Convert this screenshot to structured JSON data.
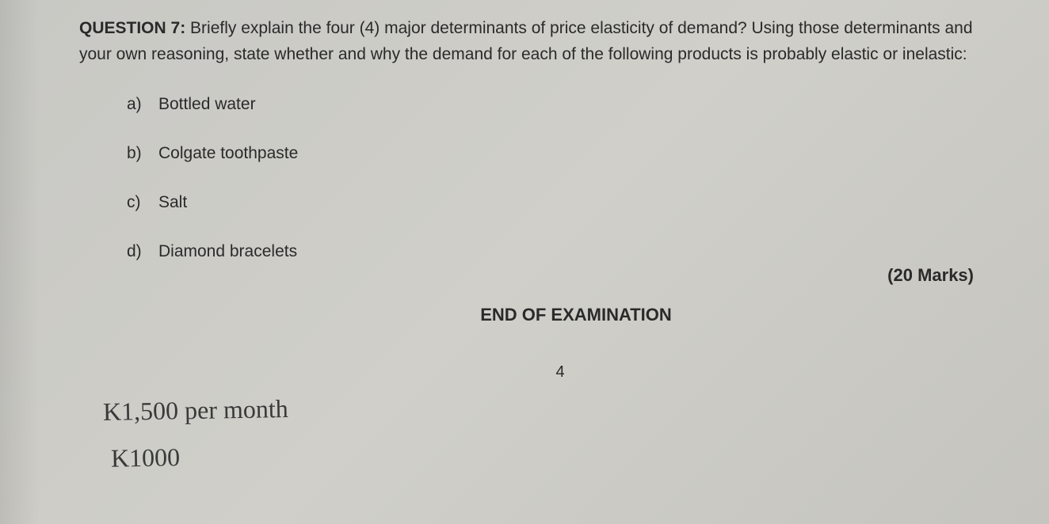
{
  "question": {
    "label": "QUESTION 7:",
    "text_part1": " Briefly explain the four (4) major determinants of price elasticity of demand? Using those determinants and your own reasoning, state whether and why the demand for each of the following products is probably elastic or inelastic:"
  },
  "options": [
    {
      "letter": "a)",
      "text": "Bottled water"
    },
    {
      "letter": "b)",
      "text": "Colgate toothpaste"
    },
    {
      "letter": "c)",
      "text": "Salt"
    },
    {
      "letter": "d)",
      "text": "Diamond bracelets"
    }
  ],
  "marks": "(20 Marks)",
  "end_text": "END OF EXAMINATION",
  "page_number": "4",
  "handwriting": {
    "line1": "K1,500 per month",
    "line2": "K1000"
  }
}
